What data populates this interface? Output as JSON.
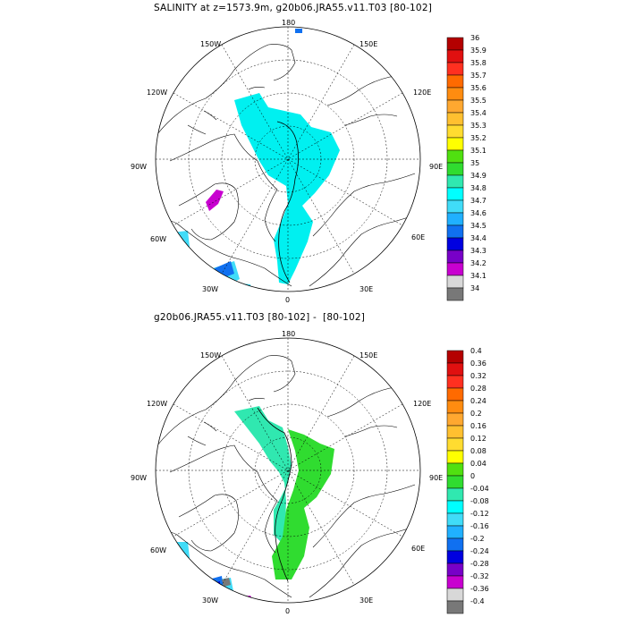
{
  "panels": [
    {
      "title": "SALINITY at z=1573.9m, g20b06.JRA55.v11.T03 [80-102]",
      "lon_labels": [
        "180",
        "150W",
        "120W",
        "90W",
        "60W",
        "30W",
        "0",
        "30E",
        "60E",
        "90E",
        "120E",
        "150E"
      ],
      "colorbar": {
        "labels": [
          "36",
          "35.9",
          "35.8",
          "35.7",
          "35.6",
          "35.5",
          "35.4",
          "35.3",
          "35.2",
          "35.1",
          "35",
          "34.9",
          "34.8",
          "34.7",
          "34.6",
          "34.5",
          "34.4",
          "34.3",
          "34.2",
          "34.1",
          "34"
        ],
        "colors": [
          "#b40000",
          "#e01010",
          "#ff3020",
          "#ff6a00",
          "#ff8c10",
          "#ffa830",
          "#ffc030",
          "#ffdc30",
          "#ffff00",
          "#50e010",
          "#30dc30",
          "#30e8b0",
          "#00ffff",
          "#40dcf8",
          "#20b0ff",
          "#1070f0",
          "#0000e0",
          "#7800c8",
          "#c800d0",
          "#d8d8d8",
          "#787878"
        ]
      }
    },
    {
      "title": "g20b06.JRA55.v11.T03 [80-102] -  [80-102]",
      "lon_labels": [
        "180",
        "150W",
        "120W",
        "90W",
        "60W",
        "30W",
        "0",
        "30E",
        "60E",
        "90E",
        "120E",
        "150E"
      ],
      "colorbar": {
        "labels": [
          "0.4",
          "0.36",
          "0.32",
          "0.28",
          "0.24",
          "0.2",
          "0.16",
          "0.12",
          "0.08",
          "0.04",
          "0",
          "-0.04",
          "-0.08",
          "-0.12",
          "-0.16",
          "-0.2",
          "-0.24",
          "-0.28",
          "-0.32",
          "-0.36",
          "-0.4"
        ],
        "colors": [
          "#b40000",
          "#e01010",
          "#ff3020",
          "#ff6a00",
          "#ff8c10",
          "#ffa830",
          "#ffc030",
          "#ffdc30",
          "#ffff00",
          "#50e010",
          "#30dc30",
          "#30e8b0",
          "#00ffff",
          "#40dcf8",
          "#20b0ff",
          "#1070f0",
          "#0000e0",
          "#7800c8",
          "#c800d0",
          "#d8d8d8",
          "#787878"
        ]
      }
    }
  ]
}
